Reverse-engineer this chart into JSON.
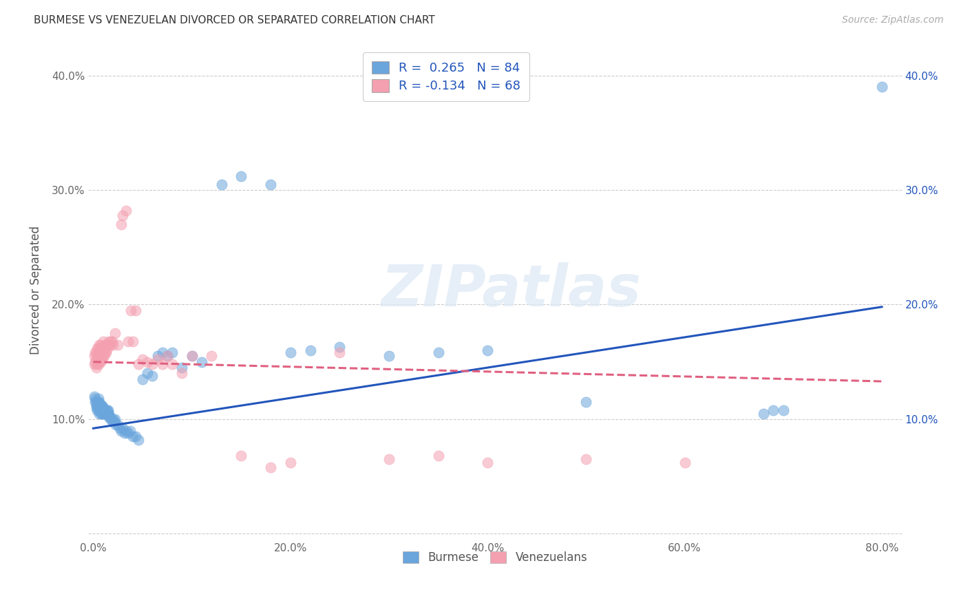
{
  "title": "BURMESE VS VENEZUELAN DIVORCED OR SEPARATED CORRELATION CHART",
  "source": "Source: ZipAtlas.com",
  "ylabel": "Divorced or Separated",
  "xlim": [
    -0.005,
    0.82
  ],
  "ylim": [
    -0.005,
    0.43
  ],
  "burmese_color": "#6aa5dc",
  "venezuelan_color": "#f4a0b0",
  "burmese_line_color": "#2255bb",
  "venezuelan_line_color": "#e06080",
  "burmese_R": 0.265,
  "burmese_N": 84,
  "venezuelan_R": -0.134,
  "venezuelan_N": 68,
  "legend_burmese": "Burmese",
  "legend_venezuelan": "Venezuelans",
  "burmese_line_x0": 0.0,
  "burmese_line_y0": 0.092,
  "burmese_line_x1": 0.8,
  "burmese_line_y1": 0.198,
  "venezuelan_line_x0": 0.0,
  "venezuelan_line_y0": 0.15,
  "venezuelan_line_x1": 0.8,
  "venezuelan_line_y1": 0.133,
  "burmese_x": [
    0.001,
    0.002,
    0.002,
    0.003,
    0.003,
    0.003,
    0.004,
    0.004,
    0.004,
    0.005,
    0.005,
    0.005,
    0.005,
    0.006,
    0.006,
    0.006,
    0.006,
    0.007,
    0.007,
    0.007,
    0.008,
    0.008,
    0.008,
    0.009,
    0.009,
    0.009,
    0.009,
    0.01,
    0.01,
    0.01,
    0.011,
    0.011,
    0.012,
    0.012,
    0.013,
    0.013,
    0.014,
    0.014,
    0.015,
    0.015,
    0.016,
    0.016,
    0.017,
    0.018,
    0.019,
    0.02,
    0.021,
    0.022,
    0.023,
    0.025,
    0.027,
    0.028,
    0.03,
    0.032,
    0.033,
    0.035,
    0.037,
    0.04,
    0.043,
    0.046,
    0.05,
    0.055,
    0.06,
    0.065,
    0.07,
    0.075,
    0.08,
    0.09,
    0.1,
    0.11,
    0.13,
    0.15,
    0.18,
    0.2,
    0.22,
    0.25,
    0.3,
    0.35,
    0.4,
    0.5,
    0.68,
    0.69,
    0.7,
    0.8
  ],
  "burmese_y": [
    0.12,
    0.115,
    0.118,
    0.11,
    0.112,
    0.115,
    0.108,
    0.112,
    0.115,
    0.108,
    0.112,
    0.115,
    0.118,
    0.105,
    0.11,
    0.112,
    0.115,
    0.108,
    0.11,
    0.112,
    0.105,
    0.108,
    0.112,
    0.105,
    0.108,
    0.11,
    0.112,
    0.105,
    0.108,
    0.11,
    0.105,
    0.108,
    0.105,
    0.108,
    0.105,
    0.108,
    0.105,
    0.108,
    0.105,
    0.108,
    0.102,
    0.105,
    0.102,
    0.1,
    0.098,
    0.1,
    0.098,
    0.1,
    0.095,
    0.095,
    0.092,
    0.09,
    0.092,
    0.088,
    0.09,
    0.088,
    0.09,
    0.085,
    0.085,
    0.082,
    0.135,
    0.14,
    0.138,
    0.155,
    0.158,
    0.155,
    0.158,
    0.145,
    0.155,
    0.15,
    0.305,
    0.312,
    0.305,
    0.158,
    0.16,
    0.163,
    0.155,
    0.158,
    0.16,
    0.115,
    0.105,
    0.108,
    0.108,
    0.39
  ],
  "venezuelan_x": [
    0.001,
    0.001,
    0.002,
    0.002,
    0.003,
    0.003,
    0.003,
    0.004,
    0.004,
    0.004,
    0.005,
    0.005,
    0.005,
    0.006,
    0.006,
    0.006,
    0.007,
    0.007,
    0.007,
    0.008,
    0.008,
    0.009,
    0.009,
    0.01,
    0.01,
    0.01,
    0.011,
    0.011,
    0.012,
    0.012,
    0.013,
    0.013,
    0.014,
    0.015,
    0.016,
    0.017,
    0.018,
    0.019,
    0.02,
    0.022,
    0.025,
    0.028,
    0.03,
    0.033,
    0.035,
    0.038,
    0.04,
    0.043,
    0.046,
    0.05,
    0.055,
    0.06,
    0.065,
    0.07,
    0.075,
    0.08,
    0.09,
    0.1,
    0.12,
    0.15,
    0.18,
    0.2,
    0.25,
    0.3,
    0.35,
    0.4,
    0.5,
    0.6
  ],
  "venezuelan_y": [
    0.148,
    0.155,
    0.15,
    0.158,
    0.145,
    0.152,
    0.158,
    0.148,
    0.155,
    0.162,
    0.148,
    0.155,
    0.162,
    0.15,
    0.158,
    0.165,
    0.15,
    0.158,
    0.165,
    0.152,
    0.16,
    0.152,
    0.16,
    0.155,
    0.162,
    0.168,
    0.155,
    0.162,
    0.158,
    0.165,
    0.158,
    0.165,
    0.162,
    0.165,
    0.168,
    0.165,
    0.168,
    0.168,
    0.165,
    0.175,
    0.165,
    0.27,
    0.278,
    0.282,
    0.168,
    0.195,
    0.168,
    0.195,
    0.148,
    0.152,
    0.15,
    0.148,
    0.152,
    0.148,
    0.155,
    0.148,
    0.14,
    0.155,
    0.155,
    0.068,
    0.058,
    0.062,
    0.158,
    0.065,
    0.068,
    0.062,
    0.065,
    0.062
  ]
}
